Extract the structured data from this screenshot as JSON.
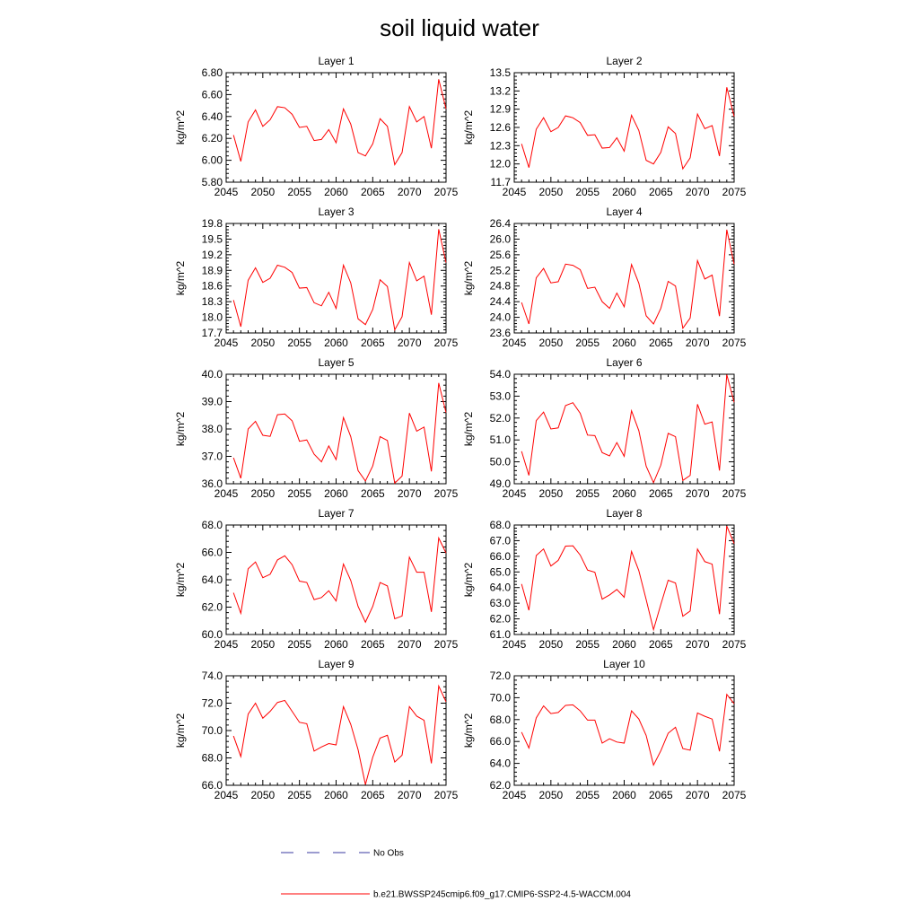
{
  "figure": {
    "title": "soil liquid water"
  },
  "legend": {
    "obs_label": "No Obs",
    "obs_color": "#3a3aa0",
    "model_label": "b.e21.BWSSP245cmip6.f09_g17.CMIP6-SSP2-4.5-WACCM.004",
    "model_color": "#ff0000"
  },
  "chart_data": [
    {
      "type": "line",
      "title": "Layer 1",
      "ylabel": "kg/m^2",
      "xlabel": "",
      "xlim": [
        2045,
        2075
      ],
      "ylim": [
        5.8,
        6.8
      ],
      "decimals": 2,
      "xticks": [
        2045,
        2050,
        2055,
        2060,
        2065,
        2070,
        2075
      ],
      "yticks": [
        5.8,
        6.0,
        6.2,
        6.4,
        6.6,
        6.8
      ],
      "series": [
        {
          "color": "#ff0000",
          "x": [
            2046,
            2047,
            2048,
            2049,
            2050,
            2051,
            2052,
            2053,
            2054,
            2055,
            2056,
            2057,
            2058,
            2059,
            2060,
            2061,
            2062,
            2063,
            2064,
            2065,
            2066,
            2067,
            2068,
            2069,
            2070,
            2071,
            2072,
            2073,
            2074,
            2075
          ],
          "values": [
            6.23,
            5.99,
            6.35,
            6.46,
            6.31,
            6.37,
            6.49,
            6.48,
            6.42,
            6.3,
            6.31,
            6.18,
            6.19,
            6.28,
            6.16,
            6.47,
            6.33,
            6.07,
            6.04,
            6.15,
            6.38,
            6.31,
            5.96,
            6.07,
            6.49,
            6.35,
            6.4,
            6.11,
            6.74,
            6.47
          ]
        }
      ]
    },
    {
      "type": "line",
      "title": "Layer 2",
      "ylabel": "kg/m^2",
      "xlabel": "",
      "xlim": [
        2045,
        2075
      ],
      "ylim": [
        11.7,
        13.5
      ],
      "decimals": 1,
      "xticks": [
        2045,
        2050,
        2055,
        2060,
        2065,
        2070,
        2075
      ],
      "yticks": [
        11.7,
        12.0,
        12.3,
        12.6,
        12.9,
        13.2,
        13.5
      ],
      "series": [
        {
          "color": "#ff0000",
          "x": [
            2046,
            2047,
            2048,
            2049,
            2050,
            2051,
            2052,
            2053,
            2054,
            2055,
            2056,
            2057,
            2058,
            2059,
            2060,
            2061,
            2062,
            2063,
            2064,
            2065,
            2066,
            2067,
            2068,
            2069,
            2070,
            2071,
            2072,
            2073,
            2074,
            2075
          ],
          "values": [
            12.33,
            11.94,
            12.57,
            12.76,
            12.53,
            12.6,
            12.79,
            12.76,
            12.68,
            12.47,
            12.48,
            12.26,
            12.27,
            12.43,
            12.21,
            12.8,
            12.55,
            12.06,
            12.0,
            12.19,
            12.61,
            12.5,
            11.92,
            12.1,
            12.82,
            12.58,
            12.63,
            12.13,
            13.26,
            12.78
          ]
        }
      ]
    },
    {
      "type": "line",
      "title": "Layer 3",
      "ylabel": "kg/m^2",
      "xlabel": "",
      "xlim": [
        2045,
        2075
      ],
      "ylim": [
        17.7,
        19.8
      ],
      "decimals": 1,
      "xticks": [
        2045,
        2050,
        2055,
        2060,
        2065,
        2070,
        2075
      ],
      "yticks": [
        17.7,
        18.0,
        18.3,
        18.6,
        18.9,
        19.2,
        19.5,
        19.8
      ],
      "series": [
        {
          "color": "#ff0000",
          "x": [
            2046,
            2047,
            2048,
            2049,
            2050,
            2051,
            2052,
            2053,
            2054,
            2055,
            2056,
            2057,
            2058,
            2059,
            2060,
            2061,
            2062,
            2063,
            2064,
            2065,
            2066,
            2067,
            2068,
            2069,
            2070,
            2071,
            2072,
            2073,
            2074,
            2075
          ],
          "values": [
            18.33,
            17.82,
            18.71,
            18.95,
            18.67,
            18.75,
            19.0,
            18.96,
            18.86,
            18.56,
            18.57,
            18.28,
            18.22,
            18.48,
            18.17,
            19.0,
            18.66,
            17.97,
            17.86,
            18.15,
            18.72,
            18.59,
            17.76,
            18.01,
            19.05,
            18.7,
            18.79,
            18.05,
            19.69,
            19.05
          ]
        }
      ]
    },
    {
      "type": "line",
      "title": "Layer 4",
      "ylabel": "kg/m^2",
      "xlabel": "",
      "xlim": [
        2045,
        2075
      ],
      "ylim": [
        23.6,
        26.4
      ],
      "decimals": 1,
      "xticks": [
        2045,
        2050,
        2055,
        2060,
        2065,
        2070,
        2075
      ],
      "yticks": [
        23.6,
        24.0,
        24.4,
        24.8,
        25.2,
        25.6,
        26.0,
        26.4
      ],
      "series": [
        {
          "color": "#ff0000",
          "x": [
            2046,
            2047,
            2048,
            2049,
            2050,
            2051,
            2052,
            2053,
            2054,
            2055,
            2056,
            2057,
            2058,
            2059,
            2060,
            2061,
            2062,
            2063,
            2064,
            2065,
            2066,
            2067,
            2068,
            2069,
            2070,
            2071,
            2072,
            2073,
            2074,
            2075
          ],
          "values": [
            24.38,
            23.83,
            25.01,
            25.25,
            24.88,
            24.91,
            25.36,
            25.33,
            25.22,
            24.74,
            24.77,
            24.4,
            24.23,
            24.62,
            24.27,
            25.35,
            24.87,
            24.04,
            23.83,
            24.23,
            24.92,
            24.8,
            23.72,
            23.98,
            25.45,
            24.98,
            25.08,
            24.03,
            26.24,
            25.36
          ]
        }
      ]
    },
    {
      "type": "line",
      "title": "Layer 5",
      "ylabel": "kg/m^2",
      "xlabel": "",
      "xlim": [
        2045,
        2075
      ],
      "ylim": [
        36.0,
        40.0
      ],
      "decimals": 1,
      "xticks": [
        2045,
        2050,
        2055,
        2060,
        2065,
        2070,
        2075
      ],
      "yticks": [
        36.0,
        37.0,
        38.0,
        39.0,
        40.0
      ],
      "series": [
        {
          "color": "#ff0000",
          "x": [
            2046,
            2047,
            2048,
            2049,
            2050,
            2051,
            2052,
            2053,
            2054,
            2055,
            2056,
            2057,
            2058,
            2059,
            2060,
            2061,
            2062,
            2063,
            2064,
            2065,
            2066,
            2067,
            2068,
            2069,
            2070,
            2071,
            2072,
            2073,
            2074,
            2075
          ],
          "values": [
            36.95,
            36.2,
            38.0,
            38.28,
            37.77,
            37.73,
            38.52,
            38.55,
            38.3,
            37.55,
            37.6,
            37.08,
            36.8,
            37.38,
            36.88,
            38.42,
            37.72,
            36.48,
            36.1,
            36.65,
            37.72,
            37.58,
            36.02,
            36.28,
            38.58,
            37.92,
            38.07,
            36.45,
            39.68,
            38.6
          ]
        }
      ]
    },
    {
      "type": "line",
      "title": "Layer 6",
      "ylabel": "kg/m^2",
      "xlabel": "",
      "xlim": [
        2045,
        2075
      ],
      "ylim": [
        49.0,
        54.0
      ],
      "decimals": 1,
      "xticks": [
        2045,
        2050,
        2055,
        2060,
        2065,
        2070,
        2075
      ],
      "yticks": [
        49.0,
        50.0,
        51.0,
        52.0,
        53.0,
        54.0
      ],
      "series": [
        {
          "color": "#ff0000",
          "x": [
            2046,
            2047,
            2048,
            2049,
            2050,
            2051,
            2052,
            2053,
            2054,
            2055,
            2056,
            2057,
            2058,
            2059,
            2060,
            2061,
            2062,
            2063,
            2064,
            2065,
            2066,
            2067,
            2068,
            2069,
            2070,
            2071,
            2072,
            2073,
            2074,
            2075
          ],
          "values": [
            50.48,
            49.38,
            51.88,
            52.27,
            51.5,
            51.55,
            52.57,
            52.7,
            52.22,
            51.22,
            51.2,
            50.42,
            50.27,
            50.88,
            50.25,
            52.33,
            51.42,
            49.8,
            49.05,
            49.85,
            51.3,
            51.15,
            49.15,
            49.38,
            52.63,
            51.72,
            51.82,
            49.6,
            53.98,
            52.72
          ]
        }
      ]
    },
    {
      "type": "line",
      "title": "Layer 7",
      "ylabel": "kg/m^2",
      "xlabel": "",
      "xlim": [
        2045,
        2075
      ],
      "ylim": [
        60.0,
        68.0
      ],
      "decimals": 1,
      "xticks": [
        2045,
        2050,
        2055,
        2060,
        2065,
        2070,
        2075
      ],
      "yticks": [
        60.0,
        62.0,
        64.0,
        66.0,
        68.0
      ],
      "series": [
        {
          "color": "#ff0000",
          "x": [
            2046,
            2047,
            2048,
            2049,
            2050,
            2051,
            2052,
            2053,
            2054,
            2055,
            2056,
            2057,
            2058,
            2059,
            2060,
            2061,
            2062,
            2063,
            2064,
            2065,
            2066,
            2067,
            2068,
            2069,
            2070,
            2071,
            2072,
            2073,
            2074,
            2075
          ],
          "values": [
            63.05,
            61.55,
            64.8,
            65.3,
            64.15,
            64.4,
            65.45,
            65.75,
            65.1,
            63.9,
            63.8,
            62.55,
            62.7,
            63.2,
            62.45,
            65.15,
            63.95,
            62.05,
            60.9,
            62.05,
            63.8,
            63.55,
            61.15,
            61.35,
            65.65,
            64.55,
            64.55,
            61.65,
            67.05,
            65.95
          ]
        }
      ]
    },
    {
      "type": "line",
      "title": "Layer 8",
      "ylabel": "kg/m^2",
      "xlabel": "",
      "xlim": [
        2045,
        2075
      ],
      "ylim": [
        61.0,
        68.0
      ],
      "decimals": 1,
      "xticks": [
        2045,
        2050,
        2055,
        2060,
        2065,
        2070,
        2075
      ],
      "yticks": [
        61.0,
        62.0,
        63.0,
        64.0,
        65.0,
        66.0,
        67.0,
        68.0
      ],
      "series": [
        {
          "color": "#ff0000",
          "x": [
            2046,
            2047,
            2048,
            2049,
            2050,
            2051,
            2052,
            2053,
            2054,
            2055,
            2056,
            2057,
            2058,
            2059,
            2060,
            2061,
            2062,
            2063,
            2064,
            2065,
            2066,
            2067,
            2068,
            2069,
            2070,
            2071,
            2072,
            2073,
            2074,
            2075
          ],
          "values": [
            64.23,
            62.55,
            66.05,
            66.47,
            65.38,
            65.74,
            66.65,
            66.67,
            66.08,
            65.12,
            64.98,
            63.26,
            63.53,
            63.88,
            63.38,
            66.31,
            65.08,
            63.23,
            61.31,
            62.92,
            64.47,
            64.29,
            62.17,
            62.5,
            66.46,
            65.66,
            65.5,
            62.3,
            67.93,
            66.81
          ]
        }
      ]
    },
    {
      "type": "line",
      "title": "Layer 9",
      "ylabel": "kg/m^2",
      "xlabel": "",
      "xlim": [
        2045,
        2075
      ],
      "ylim": [
        66.0,
        74.0
      ],
      "decimals": 1,
      "xticks": [
        2045,
        2050,
        2055,
        2060,
        2065,
        2070,
        2075
      ],
      "yticks": [
        66.0,
        68.0,
        70.0,
        72.0,
        74.0
      ],
      "series": [
        {
          "color": "#ff0000",
          "x": [
            2046,
            2047,
            2048,
            2049,
            2050,
            2051,
            2052,
            2053,
            2054,
            2055,
            2056,
            2057,
            2058,
            2059,
            2060,
            2061,
            2062,
            2063,
            2064,
            2065,
            2066,
            2067,
            2068,
            2069,
            2070,
            2071,
            2072,
            2073,
            2074,
            2075
          ],
          "values": [
            69.6,
            68.1,
            71.2,
            72.0,
            70.9,
            71.4,
            72.05,
            72.2,
            71.4,
            70.6,
            70.5,
            68.5,
            68.8,
            69.05,
            68.95,
            71.75,
            70.45,
            68.6,
            66.05,
            68.05,
            69.45,
            69.65,
            67.7,
            68.2,
            71.75,
            71.05,
            70.75,
            67.6,
            73.25,
            72.1
          ]
        }
      ]
    },
    {
      "type": "line",
      "title": "Layer 10",
      "ylabel": "kg/m^2",
      "xlabel": "",
      "xlim": [
        2045,
        2075
      ],
      "ylim": [
        62.0,
        72.0
      ],
      "decimals": 1,
      "xticks": [
        2045,
        2050,
        2055,
        2060,
        2065,
        2070,
        2075
      ],
      "yticks": [
        62.0,
        64.0,
        66.0,
        68.0,
        70.0,
        72.0
      ],
      "series": [
        {
          "color": "#ff0000",
          "x": [
            2046,
            2047,
            2048,
            2049,
            2050,
            2051,
            2052,
            2053,
            2054,
            2055,
            2056,
            2057,
            2058,
            2059,
            2060,
            2061,
            2062,
            2063,
            2064,
            2065,
            2066,
            2067,
            2068,
            2069,
            2070,
            2071,
            2072,
            2073,
            2074,
            2075
          ],
          "values": [
            66.85,
            65.4,
            68.15,
            69.25,
            68.55,
            68.65,
            69.3,
            69.35,
            68.8,
            67.95,
            67.95,
            65.85,
            66.25,
            65.95,
            65.85,
            68.8,
            68.05,
            66.55,
            63.85,
            65.15,
            66.75,
            67.3,
            65.35,
            65.2,
            68.6,
            68.3,
            68.05,
            65.1,
            70.3,
            69.45
          ]
        }
      ]
    }
  ]
}
